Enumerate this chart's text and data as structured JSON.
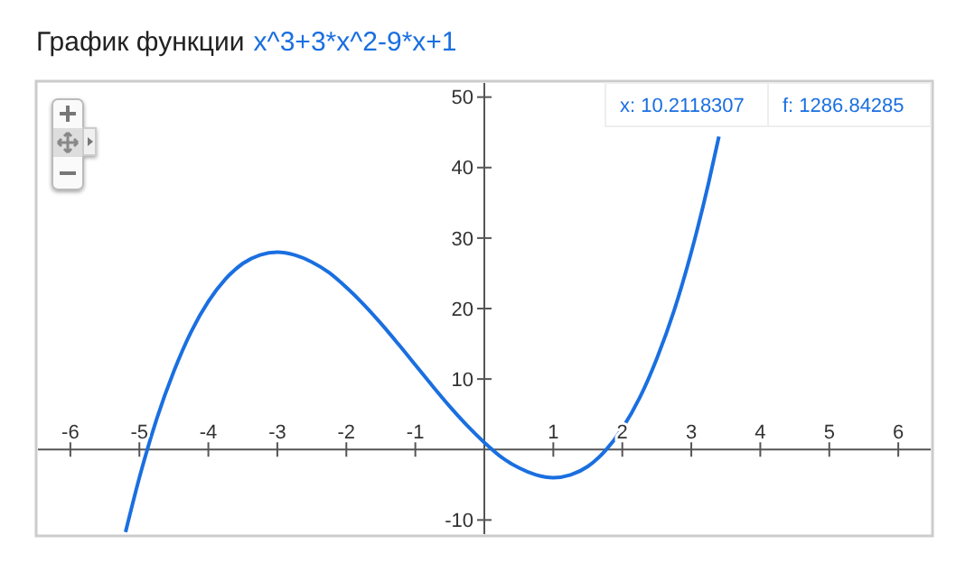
{
  "chart_data": {
    "type": "line",
    "title": "График функции",
    "subtitle": "x^3+3*x^2-9*x+1",
    "x": [
      -5.2,
      -5,
      -4.75,
      -4.5,
      -4.25,
      -4,
      -3.75,
      -3.5,
      -3.25,
      -3,
      -2.75,
      -2.5,
      -2.25,
      -2,
      -1.75,
      -1.5,
      -1.25,
      -1,
      -0.75,
      -0.5,
      -0.25,
      0,
      0.25,
      0.5,
      0.75,
      1,
      1.25,
      1.5,
      1.75,
      2,
      2.25,
      2.5,
      2.75,
      3,
      3.25,
      3.4
    ],
    "series": [
      {
        "color": "#1a6fe0",
        "values": [
          -11.7,
          -4,
          4.3,
          11.1,
          16.7,
          21,
          24.2,
          26.4,
          27.6,
          28,
          27.6,
          26.6,
          25.1,
          23,
          20.6,
          17.9,
          15,
          12,
          9,
          6.1,
          3.4,
          1,
          -1.1,
          -2.6,
          -3.6,
          -4,
          -3.6,
          -2.4,
          -0.2,
          3,
          7.3,
          12.9,
          19.7,
          28,
          37.8,
          44.4
        ]
      }
    ],
    "xlim": [
      -6.47,
      6.47
    ],
    "ylim": [
      -12,
      52
    ],
    "xticks": [
      -6,
      -5,
      -4,
      -3,
      -2,
      -1,
      1,
      2,
      3,
      4,
      5,
      6
    ],
    "yticks": [
      -10,
      10,
      20,
      30,
      40,
      50
    ],
    "grid": false,
    "marker": "none",
    "line_style": "solid",
    "annotations": [
      "x: 10.2118307",
      "f: 1286.84285"
    ]
  }
}
